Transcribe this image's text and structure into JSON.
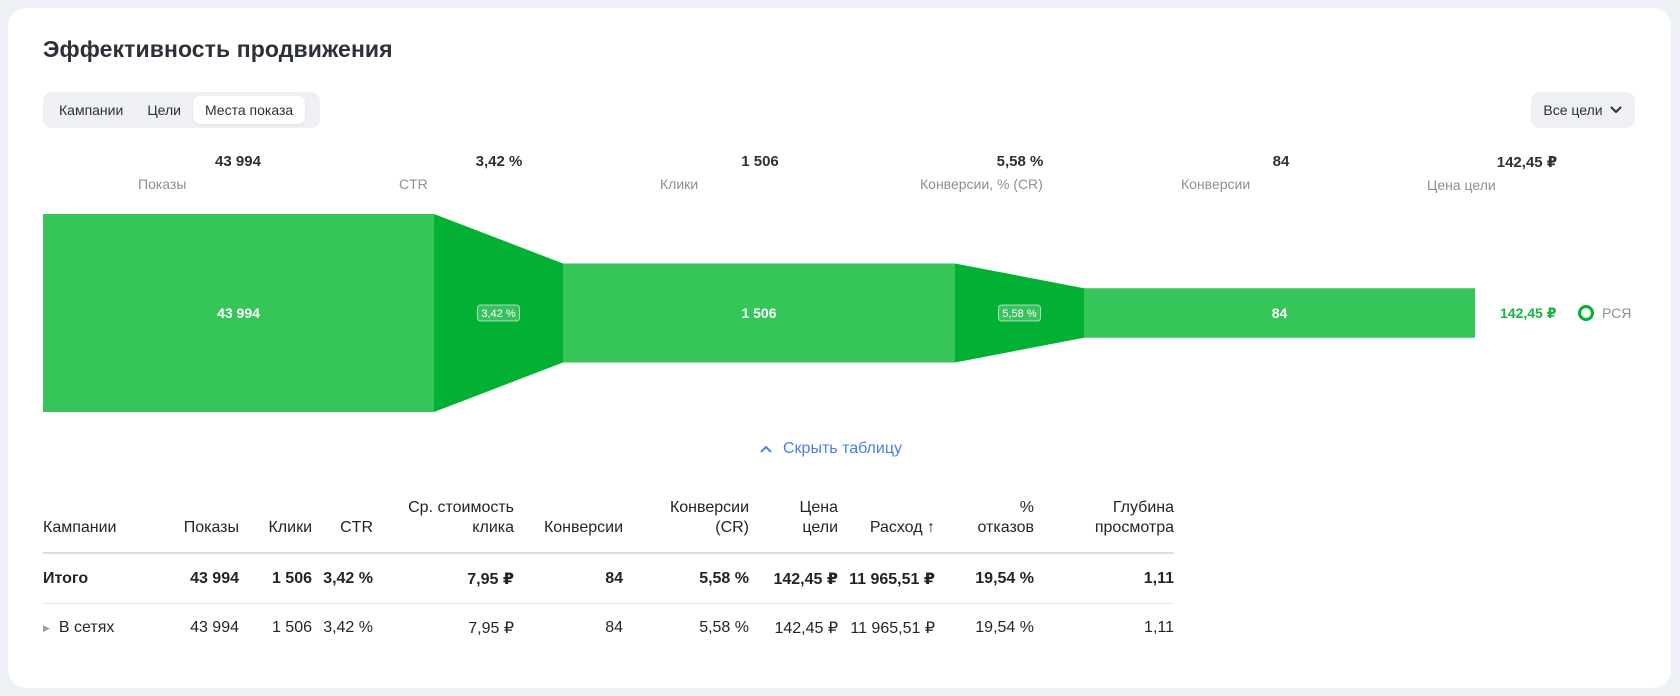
{
  "page": {
    "title": "Эффективность продвижения",
    "tabs": [
      "Кампании",
      "Цели",
      "Места показа"
    ],
    "active_tab": 2,
    "goals_select": "Все цели",
    "toggle_table_label": "Скрыть таблицу"
  },
  "metrics": [
    {
      "value": "43 994",
      "label": "Показы"
    },
    {
      "value": "3,42 %",
      "label": "CTR"
    },
    {
      "value": "1 506",
      "label": "Клики"
    },
    {
      "value": "5,58 %",
      "label": "Конверсии, % (CR)"
    },
    {
      "value": "84",
      "label": "Конверсии"
    },
    {
      "value": "142,45 ₽",
      "label": "Цена цели"
    }
  ],
  "funnel": {
    "stages": [
      {
        "name": "Показы",
        "value": 43994,
        "label": "43 994"
      },
      {
        "name": "Клики",
        "value": 1506,
        "label": "1 506"
      },
      {
        "name": "Конверсии",
        "value": 84,
        "label": "84"
      }
    ],
    "rates": [
      "3,42 %",
      "5,58 %"
    ],
    "end_value": "142,45 ₽",
    "series_name": "РСЯ",
    "colors": {
      "bar": "#36c559",
      "transition": "#02b033"
    }
  },
  "table": {
    "headers": [
      "Кампании",
      "Показы",
      "Клики",
      "CTR",
      "Ср. стоимость клика",
      "Конверсии",
      "Конверсии (CR)",
      "Цена цели",
      "Расход ↑",
      "% отказов",
      "Глубина просмотра"
    ],
    "rows": [
      {
        "cells": [
          "Итого",
          "43 994",
          "1 506",
          "3,42 %",
          "7,95 ₽",
          "84",
          "5,58 %",
          "142,45 ₽",
          "11 965,51 ₽",
          "19,54 %",
          "1,11"
        ],
        "bold": true
      },
      {
        "cells": [
          "В сетях",
          "43 994",
          "1 506",
          "3,42 %",
          "7,95 ₽",
          "84",
          "5,58 %",
          "142,45 ₽",
          "11 965,51 ₽",
          "19,54 %",
          "1,11"
        ],
        "bold": false,
        "expandable": true
      }
    ]
  }
}
